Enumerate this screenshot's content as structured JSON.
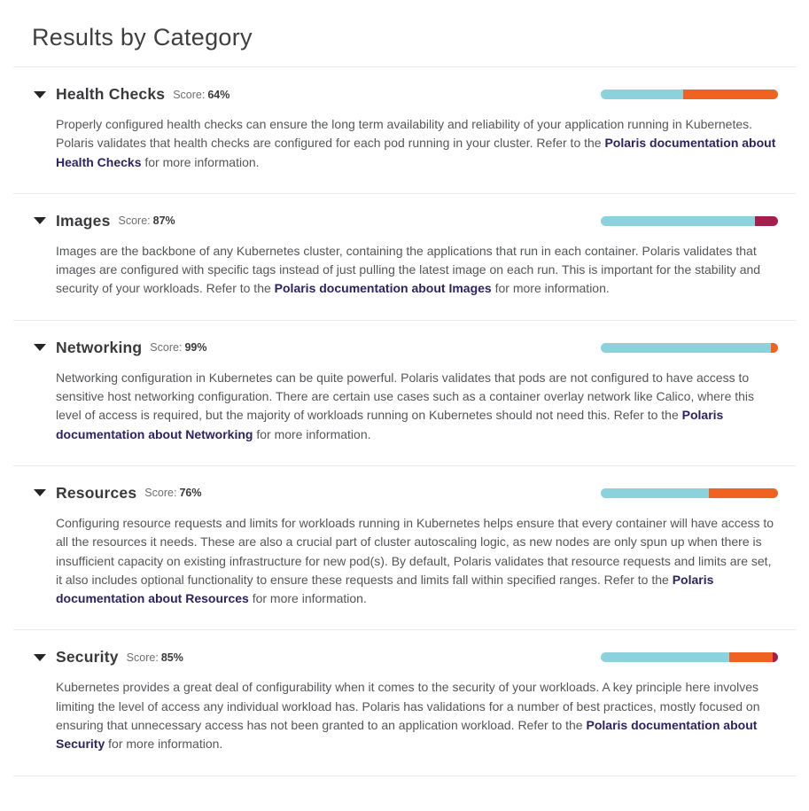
{
  "page": {
    "title": "Results by Category"
  },
  "colors": {
    "pass": "#8bd2dc",
    "warning": "#f0621f",
    "danger": "#a41e4d"
  },
  "score_label": "Score:",
  "categories": [
    {
      "name": "Health Checks",
      "score": "64%",
      "bar_segments": [
        {
          "status": "pass",
          "pct": 46.5
        },
        {
          "status": "warning",
          "pct": 53.5
        }
      ],
      "desc_before": "Properly configured health checks can ensure the long term availability and reliability of your application running in Kubernetes. Polaris validates that health checks are configured for each pod running in your cluster. Refer to the ",
      "desc_link": "Polaris documentation about Health Checks",
      "desc_after": " for more information."
    },
    {
      "name": "Images",
      "score": "87%",
      "bar_segments": [
        {
          "status": "pass",
          "pct": 87
        },
        {
          "status": "danger",
          "pct": 13
        }
      ],
      "desc_before": "Images are the backbone of any Kubernetes cluster, containing the applications that run in each container. Polaris validates that images are configured with specific tags instead of just pulling the latest image on each run. This is important for the stability and security of your workloads. Refer to the ",
      "desc_link": "Polaris documentation about Images",
      "desc_after": " for more information."
    },
    {
      "name": "Networking",
      "score": "99%",
      "bar_segments": [
        {
          "status": "pass",
          "pct": 96
        },
        {
          "status": "warning",
          "pct": 4
        }
      ],
      "desc_before": "Networking configuration in Kubernetes can be quite powerful. Polaris validates that pods are not configured to have access to sensitive host networking configuration. There are certain use cases such as a container overlay network like Calico, where this level of access is required, but the majority of workloads running on Kubernetes should not need this. Refer to the ",
      "desc_link": "Polaris documentation about Networking",
      "desc_after": " for more information."
    },
    {
      "name": "Resources",
      "score": "76%",
      "bar_segments": [
        {
          "status": "pass",
          "pct": 61
        },
        {
          "status": "warning",
          "pct": 39
        }
      ],
      "desc_before": "Configuring resource requests and limits for workloads running in Kubernetes helps ensure that every container will have access to all the resources it needs. These are also a crucial part of cluster autoscaling logic, as new nodes are only spun up when there is insufficient capacity on existing infrastructure for new pod(s). By default, Polaris validates that resource requests and limits are set, it also includes optional functionality to ensure these requests and limits fall within specified ranges. Refer to the ",
      "desc_link": "Polaris documentation about Resources",
      "desc_after": " for more information."
    },
    {
      "name": "Security",
      "score": "85%",
      "bar_segments": [
        {
          "status": "pass",
          "pct": 72.5
        },
        {
          "status": "warning",
          "pct": 24.5
        },
        {
          "status": "danger",
          "pct": 3
        }
      ],
      "desc_before": "Kubernetes provides a great deal of configurability when it comes to the security of your workloads. A key principle here involves limiting the level of access any individual workload has. Polaris has validations for a number of best practices, mostly focused on ensuring that unnecessary access has not been granted to an application workload. Refer to the ",
      "desc_link": "Polaris documentation about Security",
      "desc_after": " for more information."
    }
  ]
}
